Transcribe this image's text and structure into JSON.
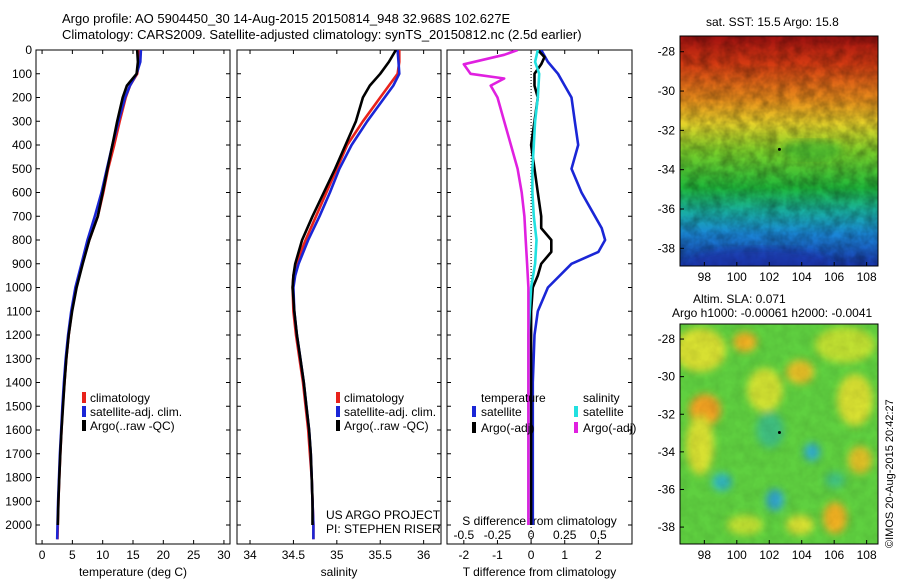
{
  "header": {
    "line1": "Argo profile: AO 5904450_30 14-Aug-2015 20150814_948 32.968S 102.627E",
    "line2": "Climatology: CARS2009. Satellite-adjusted climatology: synTS_20150812.nc (2.5d earlier)"
  },
  "credit": {
    "line1": "US ARGO PROJECT",
    "line2": "PI: STEPHEN RISER"
  },
  "stamp": "©IMOS 20-Aug-2015 20:42:27",
  "colors": {
    "climatology": "#e8221b",
    "satellite": "#1a26d6",
    "argo": "#000000",
    "sal_satellite": "#22e0e0",
    "sal_argo": "#e020e0"
  },
  "chart_data": [
    {
      "type": "line",
      "xlabel": "temperature (deg C)",
      "xlim": [
        -1,
        31
      ],
      "xticks": [
        "0",
        "5",
        "10",
        "15",
        "20",
        "25",
        "30"
      ],
      "ylim": [
        0,
        2080
      ],
      "yticks": [
        "0",
        "100",
        "200",
        "300",
        "400",
        "500",
        "600",
        "700",
        "800",
        "900",
        "1000",
        "1100",
        "1200",
        "1300",
        "1400",
        "1500",
        "1600",
        "1700",
        "1800",
        "1900",
        "2000"
      ],
      "legend": [
        "climatology",
        "satellite-adj. clim.",
        "Argo(..raw -QC)"
      ],
      "series": [
        {
          "key": "clim",
          "depth": [
            0,
            50,
            100,
            150,
            200,
            300,
            400,
            500,
            600,
            700,
            800,
            900,
            1000,
            1100,
            1200,
            1300,
            1400,
            1500,
            1600,
            1700,
            1800,
            1900,
            2000,
            2060
          ],
          "values": [
            16,
            16,
            15.7,
            14.5,
            13.8,
            12.8,
            11.9,
            10.9,
            10.1,
            9.2,
            7.8,
            6.6,
            5.6,
            4.9,
            4.4,
            4.0,
            3.7,
            3.4,
            3.2,
            3.0,
            2.85,
            2.7,
            2.6,
            2.55
          ]
        },
        {
          "key": "sat",
          "depth": [
            0,
            50,
            100,
            150,
            200,
            300,
            400,
            500,
            600,
            700,
            800,
            900,
            1000,
            1100,
            1200,
            1300,
            1400,
            1500,
            1600,
            1700,
            1800,
            1900,
            2000,
            2060
          ],
          "values": [
            16.3,
            16.2,
            15.6,
            14.5,
            13.7,
            12.6,
            11.6,
            10.7,
            9.8,
            8.7,
            7.5,
            6.5,
            5.5,
            4.8,
            4.3,
            3.9,
            3.6,
            3.35,
            3.15,
            2.95,
            2.8,
            2.65,
            2.55,
            2.5
          ]
        },
        {
          "key": "argo",
          "depth": [
            0,
            50,
            100,
            150,
            200,
            300,
            400,
            500,
            600,
            700,
            800,
            900,
            1000,
            1100,
            1200,
            1300,
            1400,
            1500,
            1600,
            1700,
            1800,
            1900,
            2000
          ],
          "values": [
            15.7,
            15.8,
            15.6,
            14.0,
            13.3,
            12.4,
            11.6,
            10.8,
            10.0,
            9.2,
            7.8,
            6.7,
            5.7,
            4.95,
            4.4,
            4.0,
            3.7,
            3.45,
            3.2,
            3.0,
            2.85,
            2.7,
            2.6
          ]
        }
      ]
    },
    {
      "type": "line",
      "xlabel": "salinity",
      "xlim": [
        33.85,
        36.2
      ],
      "xticks": [
        "34",
        "34.5",
        "35",
        "35.5",
        "36"
      ],
      "ylim": [
        0,
        2080
      ],
      "legend": [
        "climatology",
        "satellite-adj. clim.",
        "Argo(..raw -QC)"
      ],
      "series": [
        {
          "key": "clim",
          "depth": [
            0,
            50,
            100,
            150,
            200,
            300,
            400,
            500,
            600,
            700,
            800,
            900,
            950,
            1000,
            1100,
            1200,
            1300,
            1400,
            1500,
            1600,
            1700,
            1800,
            1900,
            2000,
            2060
          ],
          "values": [
            35.72,
            35.72,
            35.7,
            35.6,
            35.5,
            35.3,
            35.12,
            35.0,
            34.88,
            34.76,
            34.64,
            34.53,
            34.5,
            34.49,
            34.5,
            34.53,
            34.57,
            34.61,
            34.64,
            34.67,
            34.69,
            34.71,
            34.72,
            34.73,
            34.73
          ]
        },
        {
          "key": "sat",
          "depth": [
            0,
            50,
            100,
            150,
            200,
            300,
            400,
            500,
            600,
            700,
            800,
            900,
            950,
            1000,
            1100,
            1200,
            1300,
            1400,
            1500,
            1600,
            1700,
            1800,
            1900,
            2000,
            2060
          ],
          "values": [
            35.7,
            35.71,
            35.72,
            35.65,
            35.55,
            35.35,
            35.17,
            35.03,
            34.92,
            34.8,
            34.67,
            34.56,
            34.52,
            34.5,
            34.51,
            34.54,
            34.58,
            34.62,
            34.65,
            34.68,
            34.7,
            34.71,
            34.72,
            34.73,
            34.73
          ]
        },
        {
          "key": "argo",
          "depth": [
            0,
            50,
            100,
            150,
            200,
            300,
            400,
            500,
            600,
            700,
            800,
            900,
            950,
            1000,
            1100,
            1200,
            1300,
            1400,
            1500,
            1600,
            1700,
            1800,
            1900,
            2000
          ],
          "values": [
            35.68,
            35.6,
            35.5,
            35.38,
            35.3,
            35.22,
            35.1,
            34.98,
            34.85,
            34.72,
            34.6,
            34.52,
            34.5,
            34.49,
            34.51,
            34.54,
            34.58,
            34.62,
            34.65,
            34.68,
            34.7,
            34.71,
            34.72,
            34.72
          ]
        }
      ]
    },
    {
      "type": "line",
      "xlabel": "T difference from climatology",
      "xlabel_top": "S difference from climatology",
      "xlim": [
        -2.5,
        3
      ],
      "xticks": [
        "-2",
        "-1",
        "0",
        "1",
        "2"
      ],
      "xticks_top": [
        "-0.5",
        "-0.25",
        "0",
        "0.25",
        "0.5"
      ],
      "ylim": [
        0,
        2080
      ],
      "legend": {
        "temperature": [
          "satellite",
          "Argo(-adj)"
        ],
        "salinity": [
          "satellite",
          "Argo(-adj)"
        ],
        "headers": [
          "temperature",
          "salinity"
        ]
      },
      "series": [
        {
          "key": "sat",
          "depth": [
            0,
            50,
            100,
            150,
            200,
            300,
            400,
            500,
            600,
            700,
            750,
            800,
            850,
            900,
            1000,
            1100,
            1200,
            1400,
            1600,
            1800,
            2000
          ],
          "values": [
            0.3,
            0.5,
            0.8,
            1.0,
            1.2,
            1.3,
            1.4,
            1.2,
            1.5,
            1.9,
            2.1,
            2.2,
            2.0,
            1.2,
            0.5,
            0.2,
            0.1,
            0.05,
            0.05,
            0.05,
            0.05
          ]
        },
        {
          "key": "argo",
          "depth": [
            0,
            30,
            60,
            100,
            150,
            200,
            300,
            400,
            500,
            600,
            700,
            750,
            800,
            850,
            900,
            950,
            1000,
            1100,
            1200,
            1400,
            1600,
            1800,
            2000
          ],
          "values": [
            0.2,
            0.4,
            0.3,
            0.1,
            0.1,
            0.2,
            0.1,
            0.0,
            0.1,
            0.2,
            0.3,
            0.3,
            0.6,
            0.6,
            0.3,
            0.2,
            0.05,
            0.0,
            0.0,
            0.0,
            0.0,
            0.0,
            0.0
          ]
        },
        {
          "key": "sal_sat",
          "depth": [
            0,
            50,
            100,
            200,
            300,
            400,
            500,
            600,
            700,
            800,
            900,
            1000,
            1200,
            1400,
            1600,
            1800,
            2000
          ],
          "values": [
            0.05,
            0.03,
            0.06,
            0.05,
            0.03,
            0.02,
            0.01,
            0.01,
            0.02,
            0.04,
            0.03,
            0.0,
            -0.02,
            -0.02,
            -0.02,
            -0.02,
            -0.02
          ]
        },
        {
          "key": "sal_argo",
          "depth": [
            0,
            20,
            60,
            100,
            120,
            150,
            200,
            300,
            400,
            500,
            600,
            700,
            800,
            900,
            1000,
            1200,
            1400,
            1600,
            1800,
            2000
          ],
          "values": [
            -0.1,
            -0.2,
            -0.5,
            -0.45,
            -0.2,
            -0.3,
            -0.25,
            -0.2,
            -0.15,
            -0.1,
            -0.07,
            -0.05,
            -0.04,
            -0.03,
            -0.02,
            -0.02,
            -0.02,
            -0.02,
            -0.02,
            -0.02
          ]
        }
      ]
    },
    {
      "type": "heatmap",
      "title": "sat. SST: 15.5 Argo: 15.8",
      "xticks": [
        "98",
        "100",
        "102",
        "104",
        "106",
        "108"
      ],
      "yticks": [
        "-28",
        "-30",
        "-32",
        "-34",
        "-36",
        "-38"
      ],
      "xlim": [
        96.5,
        108.7
      ],
      "ylim": [
        -38.9,
        -27.2
      ],
      "marker": {
        "lon": 102.627,
        "lat": -32.968
      }
    },
    {
      "type": "heatmap",
      "title": "Altim. SLA: 0.071",
      "subtitle": "Argo h1000: -0.00061 h2000: -0.0041",
      "xticks": [
        "98",
        "100",
        "102",
        "104",
        "106",
        "108"
      ],
      "yticks": [
        "-28",
        "-30",
        "-32",
        "-34",
        "-36",
        "-38"
      ],
      "xlim": [
        96.5,
        108.7
      ],
      "ylim": [
        -38.9,
        -27.2
      ],
      "marker": {
        "lon": 102.627,
        "lat": -32.968
      }
    }
  ]
}
